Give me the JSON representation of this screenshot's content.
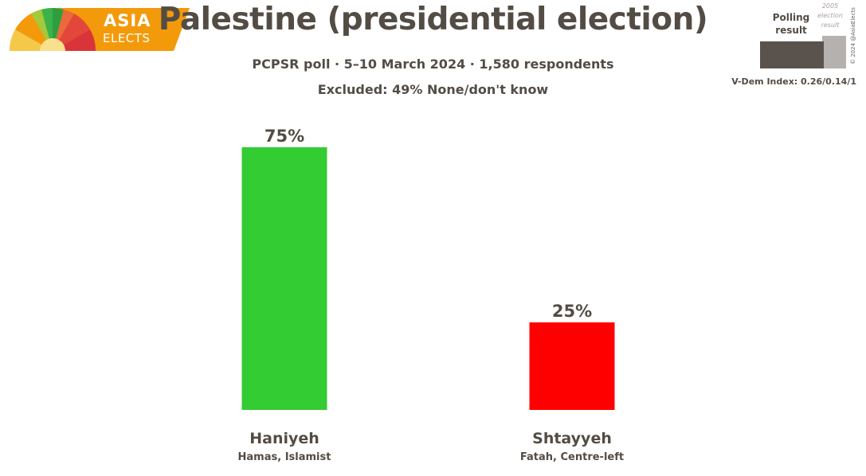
{
  "logo": {
    "line1": "ASIA",
    "line2": "ELECTS"
  },
  "header": {
    "title": "Palestine (presidential election)",
    "subtitle": "PCPSR poll · 5–10 March 2024 · 1,580 respondents",
    "excluded": "Excluded: 49% None/don't know"
  },
  "legend": {
    "polling_label": "Polling result",
    "election_label": "2005 election result",
    "copyright": "© 2024 @AsiaElects",
    "vdem": "V-Dem Index: 0.26/0.14/1"
  },
  "colors": {
    "text": "#534c45",
    "haniyeh": "#33cc33",
    "shtayyeh": "#ff0000",
    "logo_orange": "#f39a0a"
  },
  "chart_data": {
    "type": "bar",
    "title": "Palestine (presidential election)",
    "categories": [
      "Haniyeh",
      "Shtayyeh"
    ],
    "sublabels": [
      "Hamas, Islamist",
      "Fatah, Centre-left"
    ],
    "values": [
      75,
      25
    ],
    "value_labels": [
      "75%",
      "25%"
    ],
    "colors": [
      "#33cc33",
      "#ff0000"
    ],
    "ylim": [
      0,
      75
    ],
    "grid": false
  }
}
